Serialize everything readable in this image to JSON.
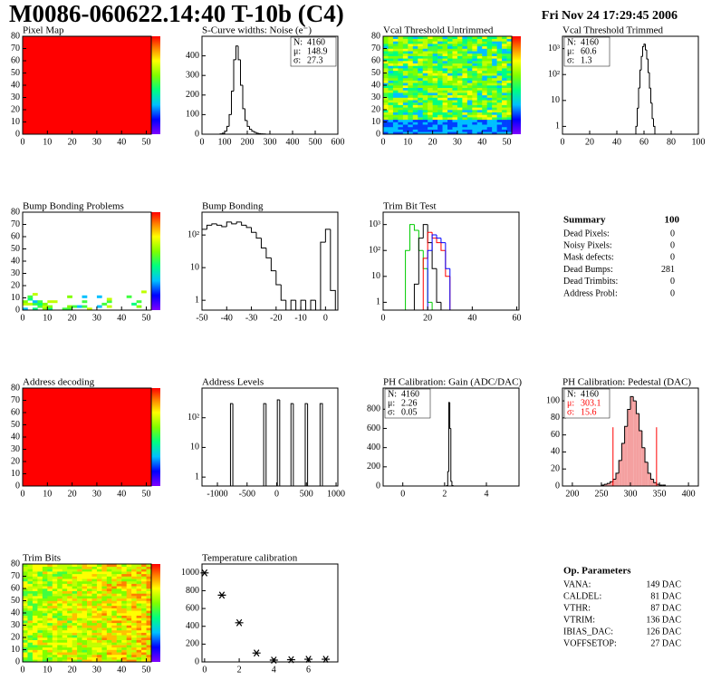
{
  "header": {
    "title": "M0086-060622.14:40 T-10b (C4)",
    "date": "Fri Nov 24 17:29:45 2006"
  },
  "chart_data": [
    {
      "type": "heatmap",
      "title": "Pixel Map",
      "xlim": [
        0,
        52
      ],
      "ylim": [
        0,
        80
      ],
      "xticks": [
        0,
        10,
        20,
        30,
        40,
        50
      ],
      "yticks": [
        0,
        10,
        20,
        30,
        40,
        50,
        60,
        70,
        80
      ],
      "color": "#ff0000"
    },
    {
      "type": "histogram",
      "title": "S-Curve widths: Noise (e⁻)",
      "xlim": [
        0,
        600
      ],
      "ylim": [
        0,
        500
      ],
      "xticks": [
        0,
        100,
        200,
        300,
        400,
        500,
        600
      ],
      "yticks": [
        0,
        100,
        200,
        300,
        400
      ],
      "log": false,
      "color": "#000000",
      "bins": [
        80,
        90,
        100,
        110,
        120,
        130,
        140,
        150,
        160,
        170,
        180,
        190,
        200,
        210,
        220,
        230,
        240,
        250,
        260,
        270,
        280
      ],
      "values": [
        2,
        5,
        15,
        40,
        100,
        220,
        380,
        450,
        380,
        250,
        130,
        70,
        40,
        25,
        15,
        10,
        5,
        3,
        2,
        1
      ],
      "stats_corner": "right",
      "stats": [
        {
          "label": "N:",
          "value": 4160
        },
        {
          "label": "μ:",
          "value": 148.9
        },
        {
          "label": "σ:",
          "value": 27.3
        }
      ]
    },
    {
      "type": "heatmap",
      "title": "Vcal Threshold Untrimmed",
      "xlim": [
        0,
        52
      ],
      "ylim": [
        0,
        80
      ],
      "xticks": [
        0,
        10,
        20,
        30,
        40,
        50
      ],
      "yticks": [
        0,
        10,
        20,
        30,
        40,
        50,
        60,
        70,
        80
      ]
    },
    {
      "type": "histogram",
      "title": "Vcal Threshold Trimmed",
      "xlim": [
        0,
        100
      ],
      "ylim": [
        0.5,
        3000
      ],
      "xticks": [
        0,
        20,
        40,
        60,
        80,
        100
      ],
      "yticks": [
        1,
        10,
        {
          "value": 100,
          "label": "10²"
        },
        {
          "value": 1000,
          "label": "10³"
        }
      ],
      "log": true,
      "color": "#000000",
      "bins": [
        54,
        55,
        56,
        57,
        58,
        59,
        60,
        61,
        62,
        63,
        64,
        65,
        66,
        67,
        68
      ],
      "values": [
        1,
        5,
        30,
        150,
        500,
        1200,
        1500,
        900,
        400,
        120,
        30,
        8,
        2,
        1
      ],
      "stats_corner": "left",
      "stats": [
        {
          "label": "N:",
          "value": 4160
        },
        {
          "label": "μ:",
          "value": 60.6
        },
        {
          "label": "σ:",
          "value": 1.3
        }
      ]
    },
    {
      "type": "heatmap",
      "title": "Bump Bonding Problems",
      "xlim": [
        0,
        52
      ],
      "ylim": [
        0,
        80
      ],
      "xticks": [
        0,
        10,
        20,
        30,
        40,
        50
      ],
      "yticks": [
        0,
        10,
        20,
        30,
        40,
        50,
        60,
        70,
        80
      ]
    },
    {
      "type": "histogram",
      "title": "Bump Bonding",
      "xlim": [
        -50,
        5
      ],
      "ylim": [
        0.5,
        500
      ],
      "xticks": [
        -50,
        -40,
        -30,
        -20,
        -10,
        0
      ],
      "yticks": [
        1,
        10,
        {
          "value": 100,
          "label": "10²"
        }
      ],
      "log": true,
      "color": "#000000",
      "bins": [
        -50,
        -48,
        -46,
        -44,
        -42,
        -40,
        -38,
        -36,
        -34,
        -32,
        -30,
        -28,
        -26,
        -24,
        -22,
        -20,
        -18,
        -16,
        -14,
        -12,
        -10,
        -8,
        -6,
        -4,
        -2,
        0,
        2,
        4
      ],
      "values": [
        150,
        200,
        220,
        200,
        180,
        250,
        220,
        250,
        200,
        170,
        120,
        80,
        40,
        20,
        8,
        3,
        1,
        0,
        1,
        0,
        1,
        0,
        1,
        0,
        60,
        150,
        2
      ]
    },
    {
      "type": "histogram",
      "title": "Trim Bit Test",
      "xlim": [
        0,
        61
      ],
      "ylim": [
        0.5,
        3000
      ],
      "xticks": [
        0,
        20,
        40,
        60
      ],
      "yticks": [
        1,
        10,
        {
          "value": 100,
          "label": "10²"
        },
        {
          "value": 1000,
          "label": "10³"
        }
      ],
      "log": true,
      "bins": [
        0,
        2,
        4,
        6,
        8,
        10,
        12,
        14,
        16,
        18,
        20,
        22,
        24,
        26,
        28,
        30,
        32,
        34,
        36,
        38,
        40,
        42,
        44,
        46,
        48,
        50,
        52,
        54,
        56,
        58,
        60
      ],
      "series": [
        {
          "color": "#00cc00",
          "values": [
            0,
            0,
            0,
            0,
            0,
            100,
            1000,
            600,
            100,
            20,
            1,
            0,
            0,
            0,
            0,
            0,
            0,
            0,
            0,
            0,
            0,
            0,
            0,
            0,
            0,
            0,
            0,
            0,
            0,
            0
          ]
        },
        {
          "color": "#000000",
          "values": [
            0,
            0,
            0,
            0,
            0,
            0,
            0,
            5,
            300,
            1000,
            200,
            20,
            1,
            0,
            0,
            0,
            0,
            0,
            0,
            0,
            0,
            0,
            0,
            0,
            0,
            0,
            0,
            0,
            0,
            0
          ]
        },
        {
          "color": "#ff0000",
          "values": [
            0,
            0,
            0,
            0,
            0,
            0,
            0,
            0,
            0,
            50,
            500,
            300,
            200,
            100,
            10,
            0,
            0,
            0,
            0,
            0,
            0,
            0,
            0,
            0,
            0,
            0,
            0,
            0,
            0,
            0
          ]
        },
        {
          "color": "#0000ff",
          "values": [
            0,
            0,
            0,
            0,
            0,
            0,
            0,
            0,
            0,
            0,
            100,
            400,
            300,
            200,
            20,
            0,
            0,
            0,
            0,
            0,
            0,
            0,
            0,
            0,
            0,
            0,
            0,
            0,
            0,
            0
          ]
        }
      ]
    },
    {
      "type": "heatmap",
      "title": "Address decoding",
      "xlim": [
        0,
        52
      ],
      "ylim": [
        0,
        80
      ],
      "xticks": [
        0,
        10,
        20,
        30,
        40,
        50
      ],
      "yticks": [
        0,
        10,
        20,
        30,
        40,
        50,
        60,
        70,
        80
      ],
      "color": "#ff0000"
    },
    {
      "type": "histogram",
      "title": "Address Levels",
      "xlim": [
        -1260,
        1030
      ],
      "ylim": [
        0.5,
        1000
      ],
      "xticks": [
        -1000,
        -500,
        0,
        500,
        1000
      ],
      "yticks": [
        1,
        10,
        {
          "value": 100,
          "label": "10²"
        }
      ],
      "log": true,
      "color": "#000000",
      "bins": [
        -780,
        -740,
        -220,
        -180,
        10,
        50,
        240,
        280,
        480,
        520,
        730,
        770
      ],
      "values": [
        300,
        0,
        300,
        0,
        400,
        0,
        300,
        0,
        300,
        0,
        300
      ]
    },
    {
      "type": "histogram",
      "title": "PH Calibration: Gain (ADC/DAC)",
      "xlim": [
        -0.94,
        5.56
      ],
      "ylim": [
        0,
        1020
      ],
      "xticks": [
        0,
        2,
        4
      ],
      "yticks": [
        0,
        200,
        400,
        600,
        800
      ],
      "log": false,
      "color": "#000000",
      "bins": [
        2.1,
        2.15,
        2.2,
        2.25,
        2.3,
        2.35,
        2.4
      ],
      "values": [
        5,
        150,
        870,
        600,
        50,
        5
      ],
      "stats_corner": "left",
      "stats": [
        {
          "label": "N:",
          "value": 4160
        },
        {
          "label": "μ:",
          "value": 2.26
        },
        {
          "label": "σ:",
          "value": 0.05
        }
      ]
    },
    {
      "type": "histogram",
      "title": "PH Calibration: Pedestal (DAC)",
      "xlim": [
        183,
        417
      ],
      "ylim": [
        0,
        115
      ],
      "xticks": [
        200,
        250,
        300,
        350,
        400
      ],
      "yticks": [
        0,
        20,
        40,
        60,
        80,
        100
      ],
      "log": false,
      "color": "#000000",
      "fill": "#f4a0a0",
      "bins": [
        250,
        255,
        260,
        265,
        270,
        275,
        280,
        285,
        290,
        295,
        300,
        305,
        310,
        315,
        320,
        325,
        330,
        335,
        340,
        345,
        350,
        355,
        360
      ],
      "values": [
        1,
        2,
        3,
        5,
        8,
        15,
        30,
        50,
        70,
        90,
        105,
        100,
        85,
        65,
        45,
        28,
        15,
        8,
        4,
        2,
        1,
        1
      ],
      "cut_lines": [
        270,
        345
      ],
      "cut_color": "#ff0000",
      "stats_corner": "left",
      "stats": [
        {
          "label": "N:",
          "value": 4160
        },
        {
          "label": "μ:",
          "value": 303.1,
          "color": "#ff0000"
        },
        {
          "label": "σ:",
          "value": 15.6,
          "color": "#ff0000"
        }
      ]
    },
    {
      "type": "heatmap",
      "title": "Trim Bits",
      "xlim": [
        0,
        52
      ],
      "ylim": [
        0,
        80
      ],
      "xticks": [
        0,
        10,
        20,
        30,
        40,
        50
      ],
      "yticks": [
        0,
        10,
        20,
        30,
        40,
        50,
        60,
        70,
        80
      ]
    },
    {
      "type": "scatter",
      "title": "Temperature calibration",
      "xlim": [
        -0.15,
        7.7
      ],
      "ylim": [
        0,
        1100
      ],
      "xticks": [
        0,
        2,
        4,
        6
      ],
      "yticks": [
        0,
        200,
        400,
        600,
        800,
        1000
      ],
      "color": "#000000",
      "x": [
        0,
        1,
        2,
        3,
        4,
        5,
        6,
        7
      ],
      "values": [
        1000,
        750,
        440,
        100,
        20,
        25,
        30,
        30
      ]
    }
  ],
  "summary": {
    "title": "Summary",
    "total": 100,
    "rows": [
      [
        "Dead Pixels:",
        0
      ],
      [
        "Noisy Pixels:",
        0
      ],
      [
        "Mask defects:",
        0
      ],
      [
        "Dead Bumps:",
        281
      ],
      [
        "Dead Trimbits:",
        0
      ],
      [
        "Address Probl:",
        0
      ]
    ]
  },
  "parameters": {
    "title": "Op. Parameters",
    "rows": [
      [
        "VANA:",
        "149 DAC"
      ],
      [
        "CALDEL:",
        "81 DAC"
      ],
      [
        "VTHR:",
        "87 DAC"
      ],
      [
        "VTRIM:",
        "136 DAC"
      ],
      [
        "IBIAS_DAC:",
        "126 DAC"
      ],
      [
        "VOFFSETOP:",
        "27 DAC"
      ]
    ]
  }
}
